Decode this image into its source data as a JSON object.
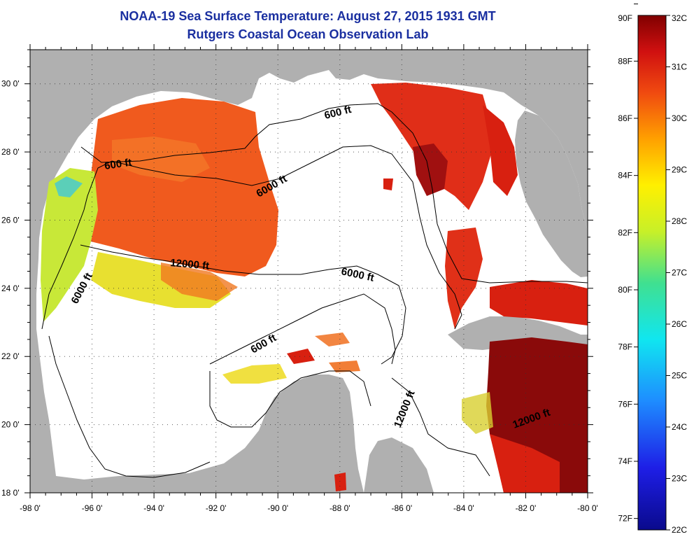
{
  "title": {
    "line1": "NOAA-19 Sea Surface Temperature:  August 27, 2015 1931 GMT",
    "line2": "Rutgers Coastal Ocean Observation Lab"
  },
  "axes": {
    "lon_range": [
      -98,
      -80
    ],
    "lat_range": [
      18,
      31
    ],
    "lon_ticks": [
      "-98 0'",
      "-96 0'",
      "-94 0'",
      "-92 0'",
      "-90 0'",
      "-88 0'",
      "-86 0'",
      "-84 0'",
      "-82 0'",
      "-80 0'"
    ],
    "lat_ticks": [
      "18 0'",
      "20 0'",
      "22 0'",
      "24 0'",
      "26 0'",
      "28 0'",
      "30 0'"
    ]
  },
  "colorbar": {
    "fahrenheit_labels": [
      "90F",
      "88F",
      "86F",
      "84F",
      "82F",
      "80F",
      "78F",
      "76F",
      "74F",
      "72F"
    ],
    "celsius_labels": [
      "32C",
      "31C",
      "30C",
      "29C",
      "28C",
      "27C",
      "26C",
      "25C",
      "24C",
      "23C",
      "22C"
    ],
    "range_c": [
      22,
      32
    ]
  },
  "contours": {
    "label_600_nw": "600 ft",
    "label_600_n": "600 ft",
    "label_600_s": "600 ft",
    "label_6000_c": "6000 ft",
    "label_6000_w": "6000 ft",
    "label_6000_e": "6000 ft",
    "label_12000_w": "12000 ft",
    "label_12000_se": "12000 ft",
    "label_12000_car": "12000 ft"
  },
  "colors": {
    "land": "#b0b0b0",
    "water_nodata": "#ffffff",
    "title": "#1a2fa0",
    "warm_red": "#e8401c",
    "hot": "#8a0a0a",
    "orange": "#f05a1e"
  }
}
